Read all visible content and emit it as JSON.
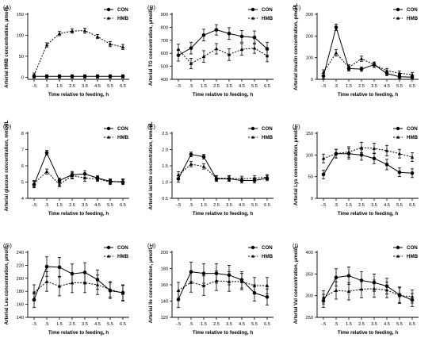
{
  "colors": {
    "ink": "#000000",
    "background": "#ffffff"
  },
  "legend": {
    "items": [
      {
        "label": "CON",
        "marker": "circle"
      },
      {
        "label": "HMB",
        "marker": "triangle"
      }
    ],
    "placement": "top-right"
  },
  "chart_data": [
    {
      "panel": "(A)",
      "type": "line",
      "x": [
        -0.5,
        0.5,
        1.5,
        2.5,
        3.5,
        4.5,
        5.5,
        6.5
      ],
      "xlabel": "Time relative to feeding, h",
      "ylabel": "Arterial HMB concentration, μmol/L",
      "ylim": [
        -5,
        150
      ],
      "yticks": [
        0,
        50,
        100,
        150
      ],
      "series": [
        {
          "name": "CON",
          "values": [
            2,
            2,
            2,
            2,
            2,
            2,
            2,
            2
          ],
          "errors": [
            4,
            4,
            4,
            4,
            4,
            4,
            4,
            4
          ]
        },
        {
          "name": "HMB",
          "values": [
            5,
            77,
            104,
            110,
            111,
            97,
            79,
            72
          ],
          "errors": [
            5,
            5,
            5,
            5,
            6,
            5,
            6,
            6
          ]
        }
      ]
    },
    {
      "panel": "(B)",
      "type": "line",
      "x": [
        -0.5,
        0.5,
        1.5,
        2.5,
        3.5,
        4.5,
        5.5,
        6.5
      ],
      "xlabel": "Time relative to feeding, h",
      "ylabel": "Arterial TG concentration, μmol/L",
      "ylim": [
        400,
        900
      ],
      "yticks": [
        400,
        500,
        600,
        700,
        800,
        900
      ],
      "series": [
        {
          "name": "CON",
          "values": [
            585,
            640,
            740,
            780,
            752,
            730,
            722,
            635
          ],
          "errors": [
            45,
            45,
            45,
            40,
            45,
            45,
            50,
            50
          ]
        },
        {
          "name": "HMB",
          "values": [
            630,
            522,
            575,
            635,
            590,
            630,
            640,
            580
          ],
          "errors": [
            40,
            40,
            45,
            40,
            45,
            45,
            40,
            45
          ]
        }
      ]
    },
    {
      "panel": "(C)",
      "type": "line",
      "x": [
        -0.5,
        0.5,
        1.5,
        2.5,
        3.5,
        4.5,
        5.5,
        6.5
      ],
      "xlabel": "Time relative to feeding, h",
      "ylabel": "Arterial insulin concentration, pmol/L",
      "ylim": [
        0,
        300
      ],
      "yticks": [
        0,
        100,
        200,
        300
      ],
      "series": [
        {
          "name": "CON",
          "values": [
            15,
            240,
            50,
            47,
            68,
            27,
            12,
            10
          ],
          "errors": [
            12,
            15,
            12,
            10,
            12,
            10,
            8,
            8
          ]
        },
        {
          "name": "HMB",
          "values": [
            32,
            122,
            55,
            95,
            67,
            40,
            28,
            22
          ],
          "errors": [
            12,
            15,
            12,
            12,
            12,
            10,
            10,
            10
          ]
        }
      ]
    },
    {
      "panel": "(D)",
      "type": "line",
      "x": [
        -0.5,
        0.5,
        1.5,
        2.5,
        3.5,
        4.5,
        5.5,
        6.5
      ],
      "xlabel": "Time relative to feeding, h",
      "ylabel": "Arterial glucose concentration, mmol/L",
      "ylim": [
        4,
        8
      ],
      "yticks": [
        4,
        5,
        6,
        7,
        8
      ],
      "series": [
        {
          "name": "CON",
          "values": [
            4.85,
            6.8,
            5.1,
            5.45,
            5.5,
            5.25,
            5.05,
            5.0
          ],
          "errors": [
            0.2,
            0.15,
            0.15,
            0.2,
            0.2,
            0.15,
            0.15,
            0.15
          ]
        },
        {
          "name": "HMB",
          "values": [
            4.9,
            5.65,
            4.85,
            5.4,
            5.25,
            5.2,
            5.0,
            5.05
          ],
          "errors": [
            0.2,
            0.15,
            0.15,
            0.2,
            0.2,
            0.15,
            0.15,
            0.15
          ]
        }
      ]
    },
    {
      "panel": "(E)",
      "type": "line",
      "x": [
        -0.5,
        0.5,
        1.5,
        2.5,
        3.5,
        4.5,
        5.5,
        6.5
      ],
      "xlabel": "Time relative to feeding, h",
      "ylabel": "Arterial lactate concentration, mmol/L",
      "ylim": [
        0.5,
        2.5
      ],
      "yticks": [
        0.5,
        1.0,
        1.5,
        2.0,
        2.5
      ],
      "series": [
        {
          "name": "CON",
          "values": [
            1.1,
            1.85,
            1.78,
            1.1,
            1.1,
            1.05,
            1.05,
            1.12
          ],
          "errors": [
            0.1,
            0.07,
            0.07,
            0.08,
            0.08,
            0.08,
            0.08,
            0.08
          ]
        },
        {
          "name": "HMB",
          "values": [
            1.22,
            1.55,
            1.48,
            1.12,
            1.12,
            1.1,
            1.12,
            1.15
          ],
          "errors": [
            0.1,
            0.08,
            0.08,
            0.08,
            0.08,
            0.08,
            0.08,
            0.08
          ]
        }
      ]
    },
    {
      "panel": "(F)",
      "type": "line",
      "x": [
        -0.5,
        0.5,
        1.5,
        2.5,
        3.5,
        4.5,
        5.5,
        6.5
      ],
      "xlabel": "Time relative to feeding, h",
      "ylabel": "Arterial Lys concentration, μmol/L",
      "ylim": [
        0,
        150
      ],
      "yticks": [
        0,
        50,
        100,
        150
      ],
      "series": [
        {
          "name": "CON",
          "values": [
            55,
            103,
            103,
            100,
            92,
            78,
            60,
            58
          ],
          "errors": [
            10,
            10,
            12,
            12,
            12,
            12,
            10,
            10
          ]
        },
        {
          "name": "HMB",
          "values": [
            92,
            103,
            107,
            117,
            115,
            110,
            103,
            95
          ],
          "errors": [
            10,
            10,
            12,
            12,
            12,
            12,
            10,
            10
          ]
        }
      ]
    },
    {
      "panel": "(G)",
      "type": "line",
      "x": [
        -0.5,
        0.5,
        1.5,
        2.5,
        3.5,
        4.5,
        5.5,
        6.5
      ],
      "xlabel": "Time relative to feeding, h",
      "ylabel": "Arterial Leu concentration, μmol/L",
      "ylim": [
        140,
        240
      ],
      "yticks": [
        140,
        160,
        180,
        200,
        220,
        240
      ],
      "series": [
        {
          "name": "CON",
          "values": [
            167,
            218,
            217,
            207,
            209,
            198,
            181,
            178
          ],
          "errors": [
            12,
            15,
            15,
            15,
            15,
            15,
            12,
            12
          ]
        },
        {
          "name": "HMB",
          "values": [
            178,
            195,
            188,
            193,
            193,
            190,
            183,
            177
          ],
          "errors": [
            12,
            15,
            15,
            15,
            15,
            15,
            12,
            12
          ]
        }
      ]
    },
    {
      "panel": "(H)",
      "type": "line",
      "x": [
        -0.5,
        0.5,
        1.5,
        2.5,
        3.5,
        4.5,
        5.5,
        6.5
      ],
      "xlabel": "Time relative to feeding, h",
      "ylabel": "Arterial Ile concentration, μmol/L",
      "ylim": [
        120,
        200
      ],
      "yticks": [
        120,
        140,
        160,
        180,
        200
      ],
      "series": [
        {
          "name": "CON",
          "values": [
            142,
            176,
            174,
            174,
            172,
            166,
            150,
            145
          ],
          "errors": [
            10,
            12,
            12,
            12,
            12,
            10,
            10,
            10
          ]
        },
        {
          "name": "HMB",
          "values": [
            153,
            163,
            159,
            165,
            164,
            164,
            159,
            159
          ],
          "errors": [
            10,
            12,
            12,
            12,
            12,
            10,
            10,
            10
          ]
        }
      ]
    },
    {
      "panel": "(I)",
      "type": "line",
      "x": [
        -0.5,
        0.5,
        1.5,
        2.5,
        3.5,
        4.5,
        5.5,
        6.5
      ],
      "xlabel": "Time relative to feeding, h",
      "ylabel": "Arterial Val concentration, μmol/L",
      "ylim": [
        250,
        400
      ],
      "yticks": [
        250,
        300,
        350,
        400
      ],
      "series": [
        {
          "name": "CON",
          "values": [
            288,
            342,
            346,
            335,
            330,
            322,
            302,
            290
          ],
          "errors": [
            15,
            20,
            20,
            20,
            20,
            18,
            18,
            15
          ]
        },
        {
          "name": "HMB",
          "values": [
            296,
            312,
            310,
            315,
            316,
            313,
            300,
            298
          ],
          "errors": [
            15,
            20,
            20,
            20,
            20,
            18,
            18,
            15
          ]
        }
      ]
    }
  ]
}
